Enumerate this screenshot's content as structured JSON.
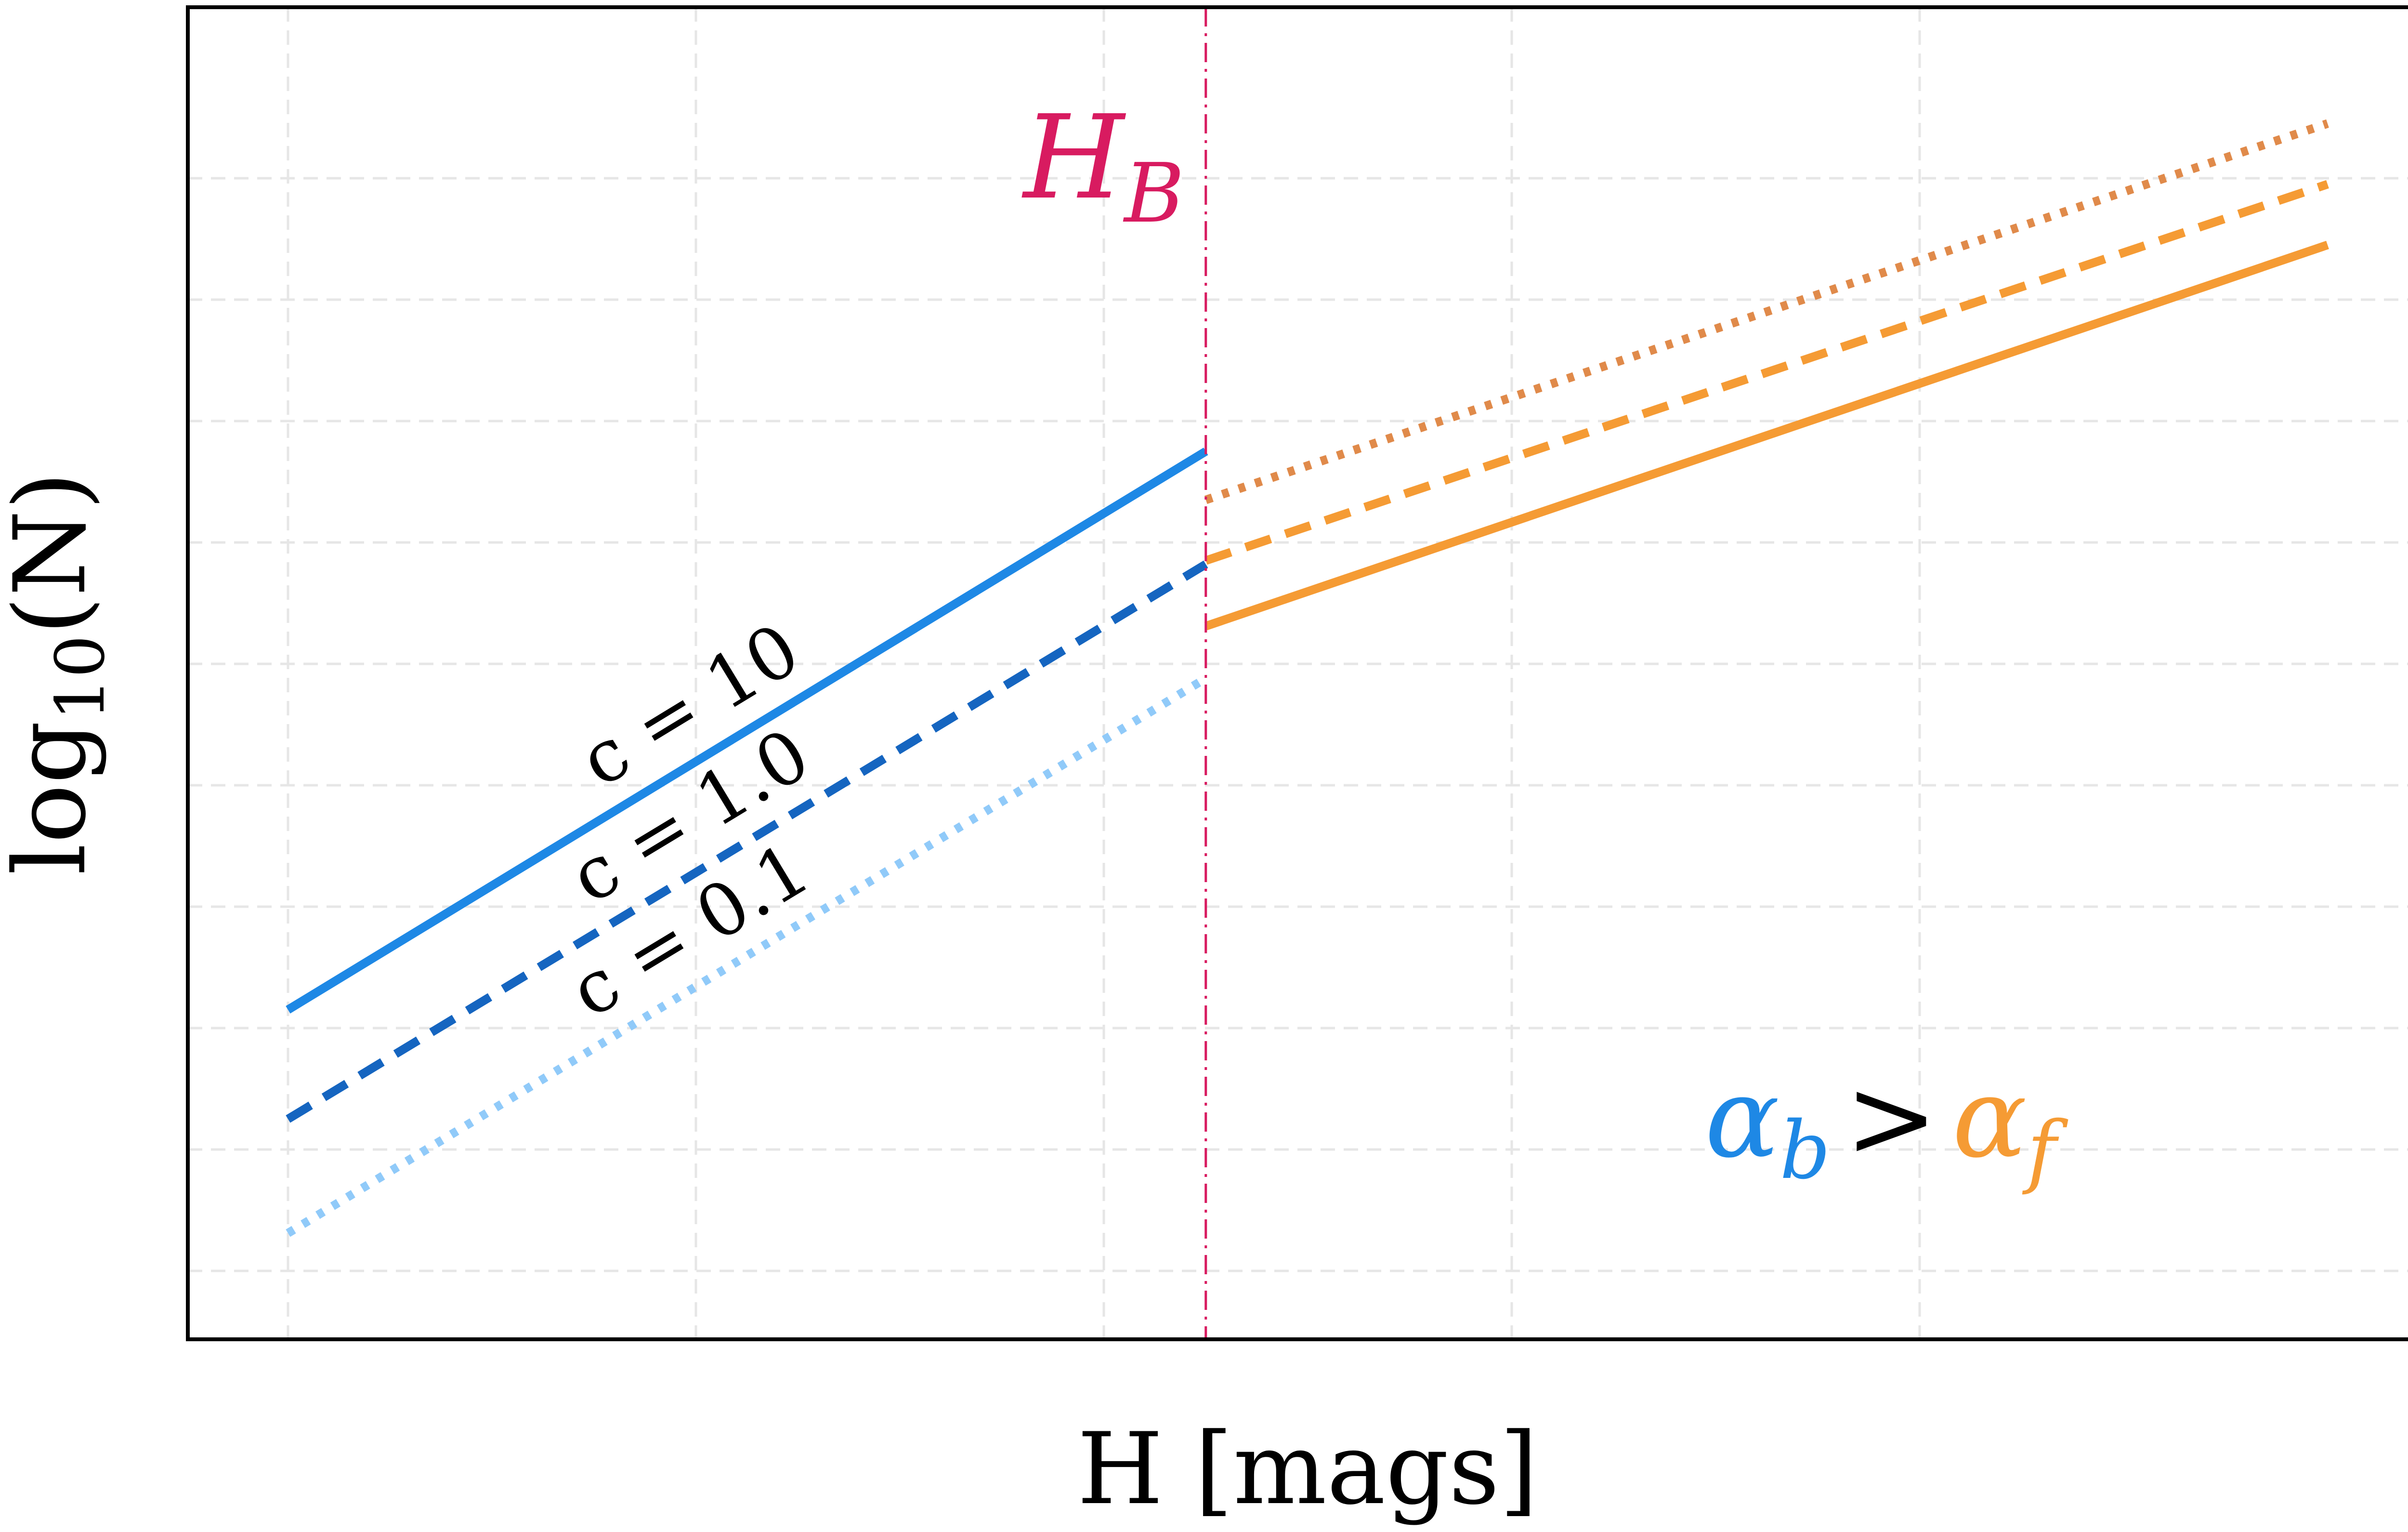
{
  "chart_data": {
    "type": "line",
    "title": "",
    "xlabel": "H [mags]",
    "ylabel_base": "log",
    "ylabel_sub": "10",
    "ylabel_tail": "(N)",
    "xlim": [
      0,
      1
    ],
    "ylim": [
      0,
      1
    ],
    "grid": true,
    "tick_labels_shown": false,
    "breakpoint": {
      "x": 0.45,
      "label_main": "H",
      "label_sub": "B",
      "color": "#d81b60"
    },
    "series": [
      {
        "name": "c = 10",
        "segment": "bright",
        "color": "#1e88e5",
        "style": "solid",
        "x": [
          0.0,
          0.45
        ],
        "y": [
          0.225,
          0.685
        ]
      },
      {
        "name": "c = 1.0",
        "segment": "bright",
        "color": "#1565c0",
        "style": "dashed",
        "x": [
          0.0,
          0.45
        ],
        "y": [
          0.135,
          0.592
        ]
      },
      {
        "name": "c = 0.1",
        "segment": "bright",
        "color": "#90caf9",
        "style": "dotted",
        "x": [
          0.0,
          0.45
        ],
        "y": [
          0.041,
          0.498
        ]
      },
      {
        "segment": "faint",
        "color": "#f59b34",
        "style": "solid",
        "x": [
          0.45,
          1.0
        ],
        "y": [
          0.541,
          0.855
        ]
      },
      {
        "segment": "faint",
        "color": "#f59b34",
        "style": "dashed",
        "x": [
          0.45,
          1.0
        ],
        "y": [
          0.595,
          0.905
        ]
      },
      {
        "segment": "faint",
        "color": "#e08a4a",
        "style": "dotted",
        "x": [
          0.45,
          1.0
        ],
        "y": [
          0.645,
          0.955
        ]
      }
    ],
    "annotation": {
      "left_symbol": "α",
      "left_sub": "b",
      "op": ">",
      "right_symbol": "α",
      "right_sub": "f",
      "left_color": "#1e88e5",
      "right_color": "#f59b34",
      "op_color": "#000000"
    },
    "line_labels": [
      {
        "series": "c = 10",
        "text": "c = 10"
      },
      {
        "series": "c = 1.0",
        "text": "c = 1.0"
      },
      {
        "series": "c = 0.1",
        "text": "c = 0.1"
      }
    ]
  }
}
